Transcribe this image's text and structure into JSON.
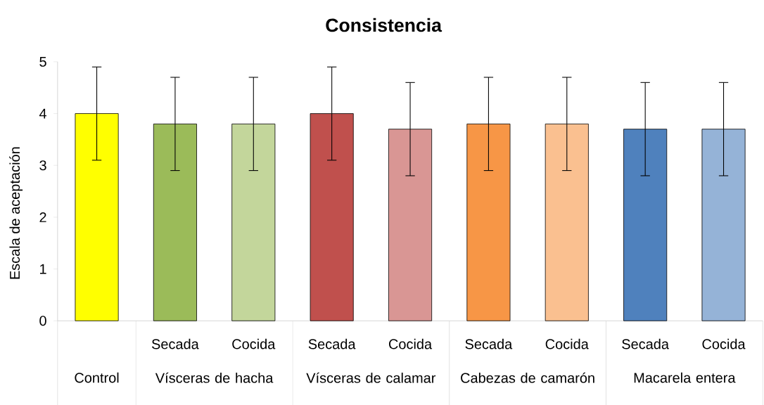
{
  "chart_data": {
    "type": "bar",
    "title": "Consistencia",
    "ylabel": "Escala de aceptación",
    "categories": [
      null,
      "Secada",
      "Cocida",
      "Secada",
      "Cocida",
      "Secada",
      "Cocida",
      "Secada",
      "Cocida"
    ],
    "annotations": [
      "Control",
      "Vísceras de hacha",
      "Vísceras de calamar",
      "Cabezas de camarón",
      "Macarela entera"
    ],
    "values": [
      4.0,
      3.8,
      3.8,
      4.0,
      3.7,
      3.8,
      3.8,
      3.7,
      3.7
    ],
    "errors": [
      0.9,
      0.9,
      0.9,
      0.9,
      0.9,
      0.9,
      0.9,
      0.9,
      0.9
    ],
    "colors": [
      "#ffff00",
      "#9bbb59",
      "#c3d69b",
      "#c0504d",
      "#d99694",
      "#f79646",
      "#fac090",
      "#4f81bd",
      "#95b3d7"
    ],
    "ylim": [
      0,
      5
    ],
    "yticks": [
      0,
      1,
      2,
      3,
      4,
      5
    ]
  }
}
